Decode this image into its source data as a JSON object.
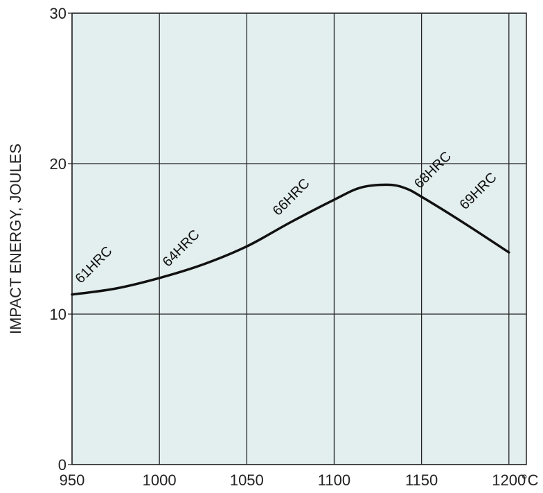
{
  "chart_data": {
    "type": "line",
    "title": "",
    "xlabel": "",
    "x_unit": "°C",
    "ylabel": "IMPACT ENERGY, JOULES",
    "xlim": [
      950,
      1210
    ],
    "ylim": [
      0,
      30
    ],
    "x_ticks": [
      950,
      1000,
      1050,
      1100,
      1150,
      1200
    ],
    "y_ticks": [
      0,
      10,
      20,
      30
    ],
    "grid": true,
    "background_color": "#e3eeee",
    "line_color": "#111111",
    "series": [
      {
        "x": [
          950,
          975,
          1000,
          1025,
          1050,
          1075,
          1100,
          1115,
          1130,
          1140,
          1150,
          1175,
          1200
        ],
        "y": [
          11.3,
          11.7,
          12.4,
          13.3,
          14.5,
          16.1,
          17.6,
          18.4,
          18.6,
          18.4,
          17.8,
          16.0,
          14.1
        ]
      }
    ],
    "annotations": [
      {
        "text": "61HRC",
        "x": 955,
        "y": 12.0
      },
      {
        "text": "64HRC",
        "x": 1005,
        "y": 13.1
      },
      {
        "text": "66HRC",
        "x": 1068,
        "y": 16.5
      },
      {
        "text": "68HRC",
        "x": 1149,
        "y": 18.3
      },
      {
        "text": "69HRC",
        "x": 1175,
        "y": 16.9
      }
    ]
  }
}
